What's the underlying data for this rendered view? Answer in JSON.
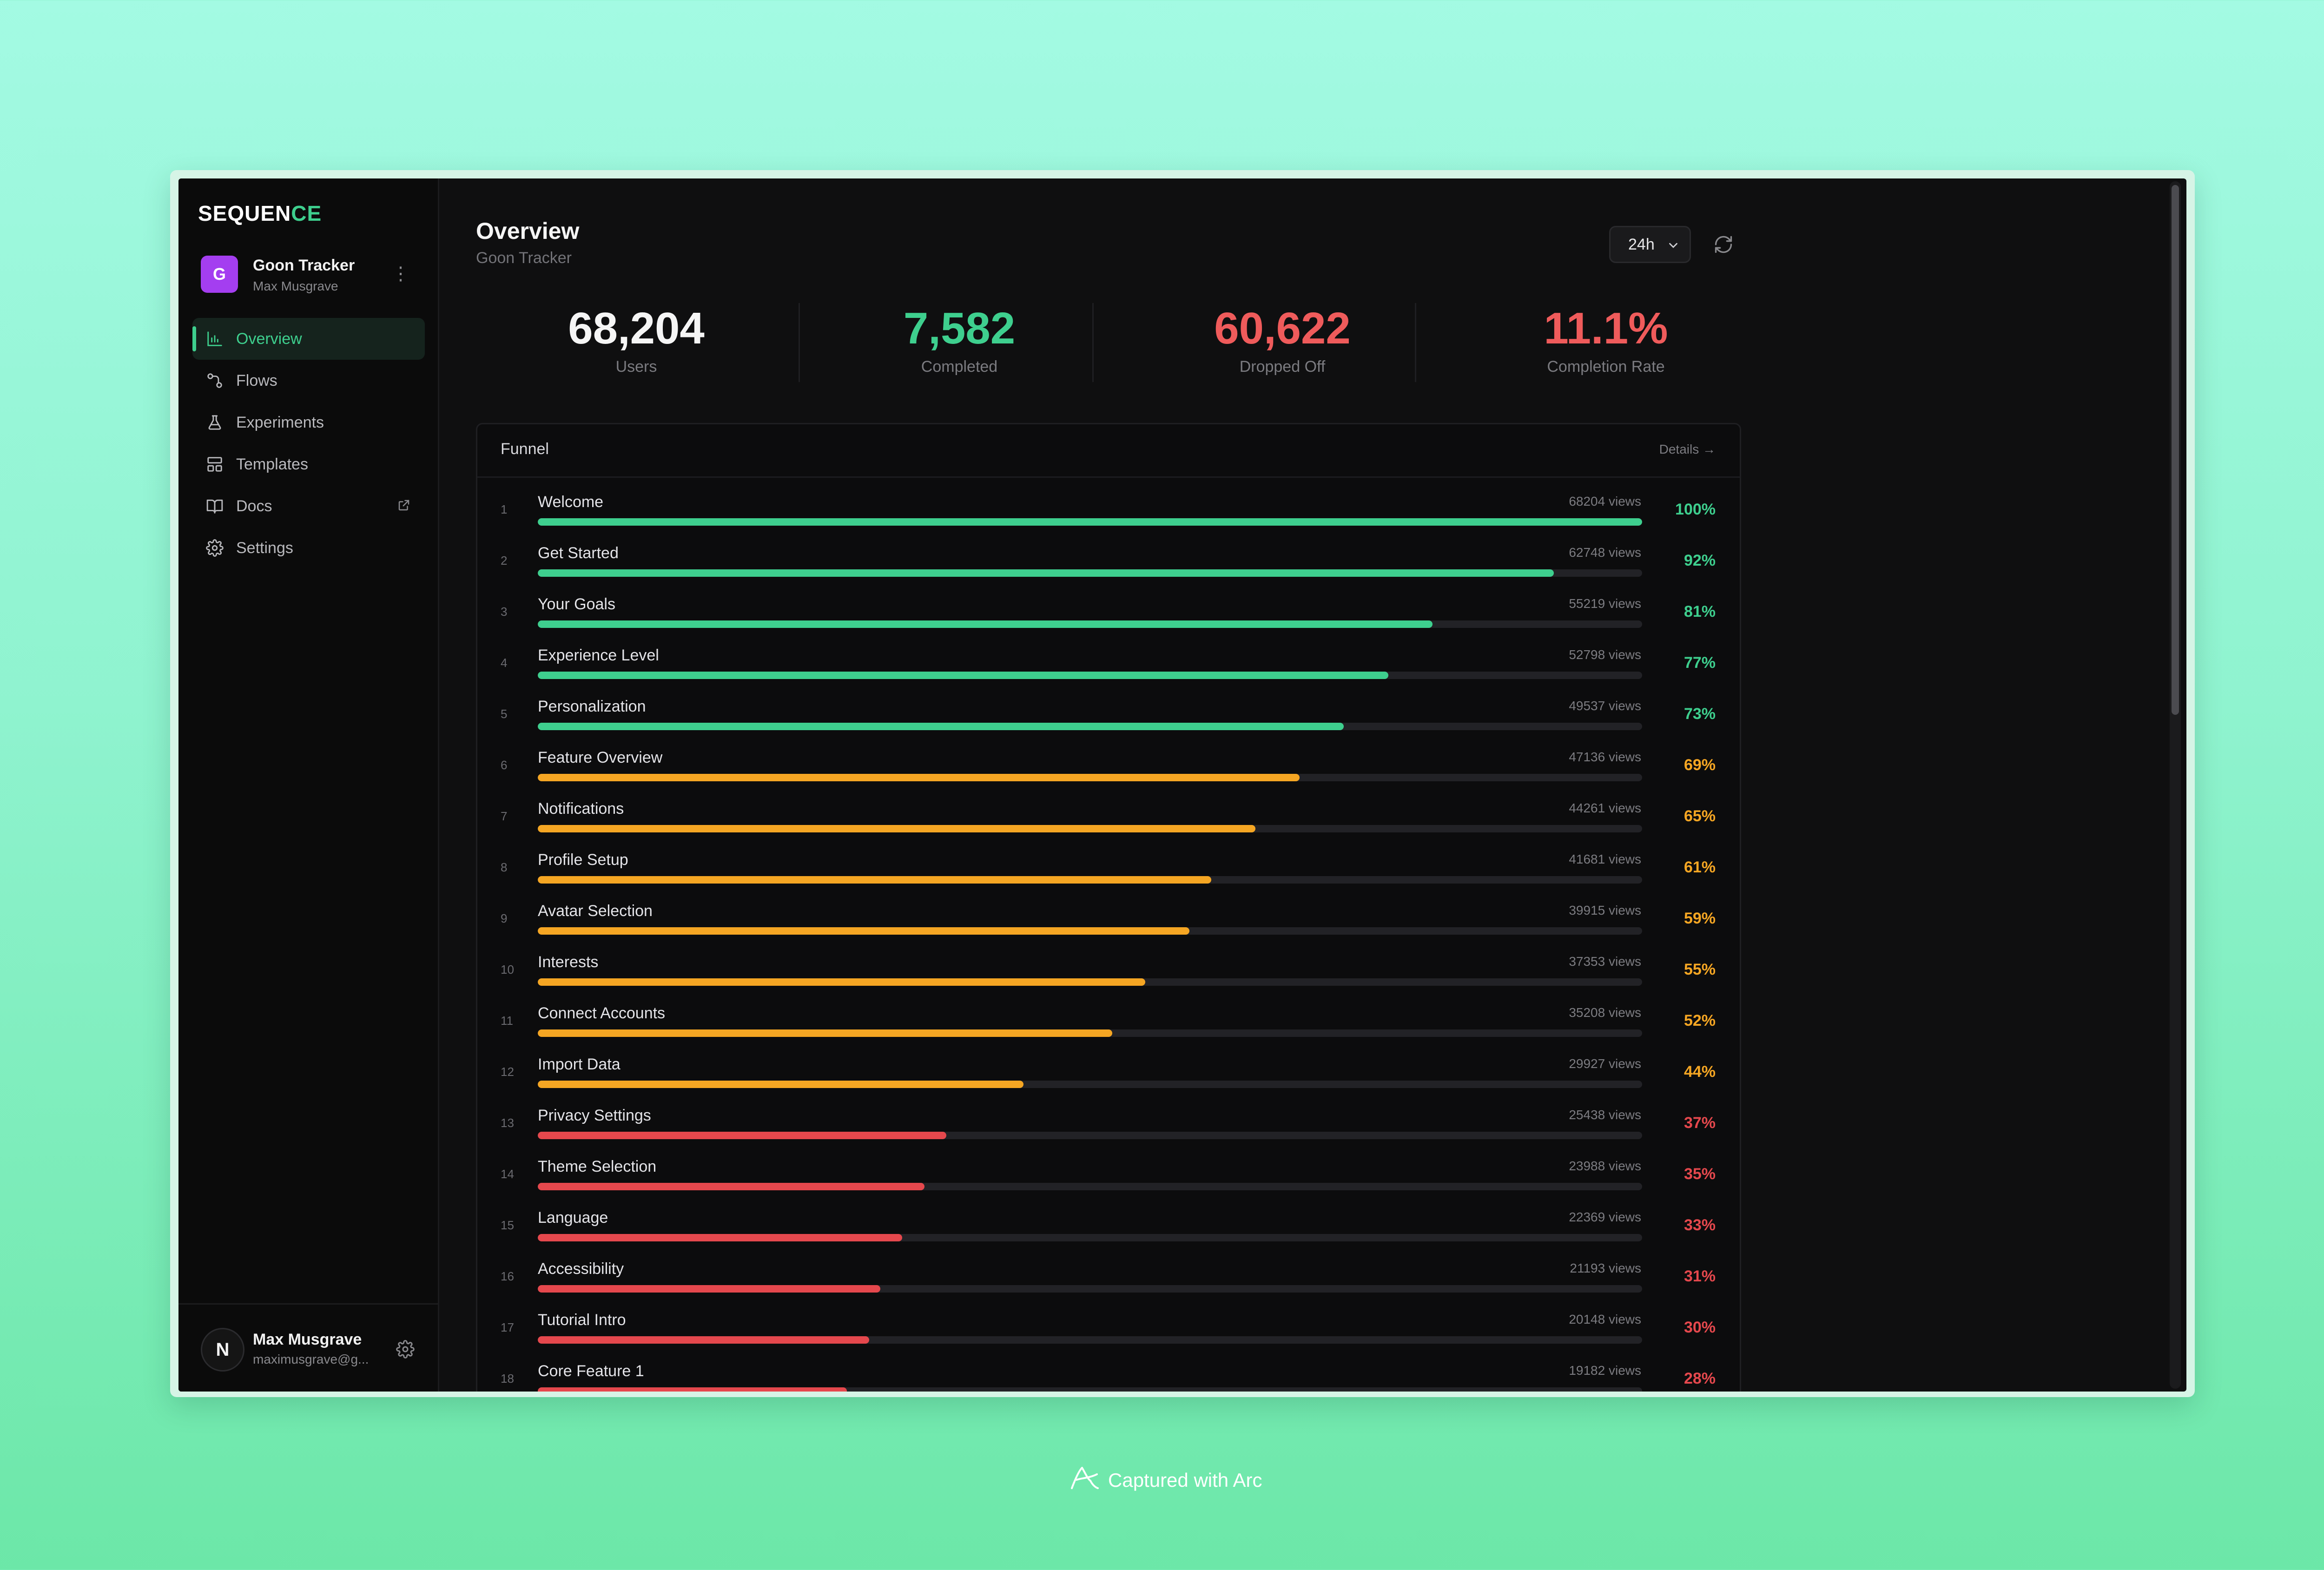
{
  "app": {
    "logo_text_main": "SEQUEN",
    "logo_text_accent": "CE",
    "accent_color": "#3ecf8e"
  },
  "project": {
    "avatar_letter": "G",
    "name": "Goon Tracker",
    "owner": "Max Musgrave"
  },
  "sidebar": {
    "items": [
      {
        "label": "Overview",
        "icon": "bar-chart-icon",
        "active": true
      },
      {
        "label": "Flows",
        "icon": "flows-icon",
        "active": false
      },
      {
        "label": "Experiments",
        "icon": "flask-icon",
        "active": false
      },
      {
        "label": "Templates",
        "icon": "templates-icon",
        "active": false
      },
      {
        "label": "Docs",
        "icon": "book-icon",
        "active": false,
        "external": true
      },
      {
        "label": "Settings",
        "icon": "gear-icon",
        "active": false
      }
    ]
  },
  "user": {
    "avatar_letter": "N",
    "name": "Max Musgrave",
    "email": "maximusgrave@g..."
  },
  "header": {
    "title": "Overview",
    "subtitle": "Goon Tracker",
    "range_value": "24h"
  },
  "stats": [
    {
      "value": "68,204",
      "label": "Users",
      "color": "#f5f5f5"
    },
    {
      "value": "7,582",
      "label": "Completed",
      "color": "#3ecf8e"
    },
    {
      "value": "60,622",
      "label": "Dropped Off",
      "color": "#ef5b5b"
    },
    {
      "value": "11.1%",
      "label": "Completion Rate",
      "color": "#ef5b5b"
    }
  ],
  "funnel": {
    "title": "Funnel",
    "details_label": "Details →",
    "colors": {
      "green": "#3ecf8e",
      "orange": "#f5a623",
      "red": "#e5484d"
    },
    "steps": [
      {
        "num": "1",
        "name": "Welcome",
        "views": "68204 views",
        "pct": "100%",
        "fraction": 1.0,
        "tone": "green"
      },
      {
        "num": "2",
        "name": "Get Started",
        "views": "62748 views",
        "pct": "92%",
        "fraction": 0.92,
        "tone": "green"
      },
      {
        "num": "3",
        "name": "Your Goals",
        "views": "55219 views",
        "pct": "81%",
        "fraction": 0.81,
        "tone": "green"
      },
      {
        "num": "4",
        "name": "Experience Level",
        "views": "52798 views",
        "pct": "77%",
        "fraction": 0.77,
        "tone": "green"
      },
      {
        "num": "5",
        "name": "Personalization",
        "views": "49537 views",
        "pct": "73%",
        "fraction": 0.73,
        "tone": "green"
      },
      {
        "num": "6",
        "name": "Feature Overview",
        "views": "47136 views",
        "pct": "69%",
        "fraction": 0.69,
        "tone": "orange"
      },
      {
        "num": "7",
        "name": "Notifications",
        "views": "44261 views",
        "pct": "65%",
        "fraction": 0.65,
        "tone": "orange"
      },
      {
        "num": "8",
        "name": "Profile Setup",
        "views": "41681 views",
        "pct": "61%",
        "fraction": 0.61,
        "tone": "orange"
      },
      {
        "num": "9",
        "name": "Avatar Selection",
        "views": "39915 views",
        "pct": "59%",
        "fraction": 0.59,
        "tone": "orange"
      },
      {
        "num": "10",
        "name": "Interests",
        "views": "37353 views",
        "pct": "55%",
        "fraction": 0.55,
        "tone": "orange"
      },
      {
        "num": "11",
        "name": "Connect Accounts",
        "views": "35208 views",
        "pct": "52%",
        "fraction": 0.52,
        "tone": "orange"
      },
      {
        "num": "12",
        "name": "Import Data",
        "views": "29927 views",
        "pct": "44%",
        "fraction": 0.44,
        "tone": "orange"
      },
      {
        "num": "13",
        "name": "Privacy Settings",
        "views": "25438 views",
        "pct": "37%",
        "fraction": 0.37,
        "tone": "red"
      },
      {
        "num": "14",
        "name": "Theme Selection",
        "views": "23988 views",
        "pct": "35%",
        "fraction": 0.35,
        "tone": "red"
      },
      {
        "num": "15",
        "name": "Language",
        "views": "22369 views",
        "pct": "33%",
        "fraction": 0.33,
        "tone": "red"
      },
      {
        "num": "16",
        "name": "Accessibility",
        "views": "21193 views",
        "pct": "31%",
        "fraction": 0.31,
        "tone": "red"
      },
      {
        "num": "17",
        "name": "Tutorial Intro",
        "views": "20148 views",
        "pct": "30%",
        "fraction": 0.3,
        "tone": "red"
      },
      {
        "num": "18",
        "name": "Core Feature 1",
        "views": "19182 views",
        "pct": "28%",
        "fraction": 0.28,
        "tone": "red"
      }
    ]
  },
  "caption": {
    "text": "Captured with Arc",
    "icon": "arc-logo-icon"
  }
}
